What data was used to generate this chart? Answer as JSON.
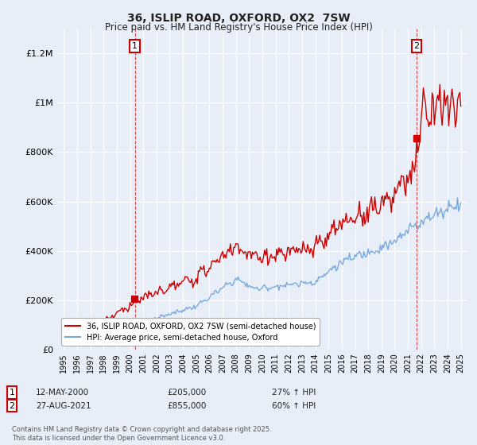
{
  "title": "36, ISLIP ROAD, OXFORD, OX2  7SW",
  "subtitle": "Price paid vs. HM Land Registry's House Price Index (HPI)",
  "bg_color": "#e8eef8",
  "plot_bg_color": "#e8eef8",
  "red_color": "#cc0000",
  "blue_color": "#7aaadd",
  "grid_color": "#ffffff",
  "legend_label_red": "36, ISLIP ROAD, OXFORD, OX2 7SW (semi-detached house)",
  "legend_label_blue": "HPI: Average price, semi-detached house, Oxford",
  "footnote": "Contains HM Land Registry data © Crown copyright and database right 2025.\nThis data is licensed under the Open Government Licence v3.0.",
  "ylim": [
    0,
    1300000
  ],
  "yticks": [
    0,
    200000,
    400000,
    600000,
    800000,
    1000000,
    1200000
  ],
  "ytick_labels": [
    "£0",
    "£200K",
    "£400K",
    "£600K",
    "£800K",
    "£1M",
    "£1.2M"
  ],
  "sale1_year": 2000.36,
  "sale1_price": 205000,
  "sale2_year": 2021.65,
  "sale2_price": 855000
}
